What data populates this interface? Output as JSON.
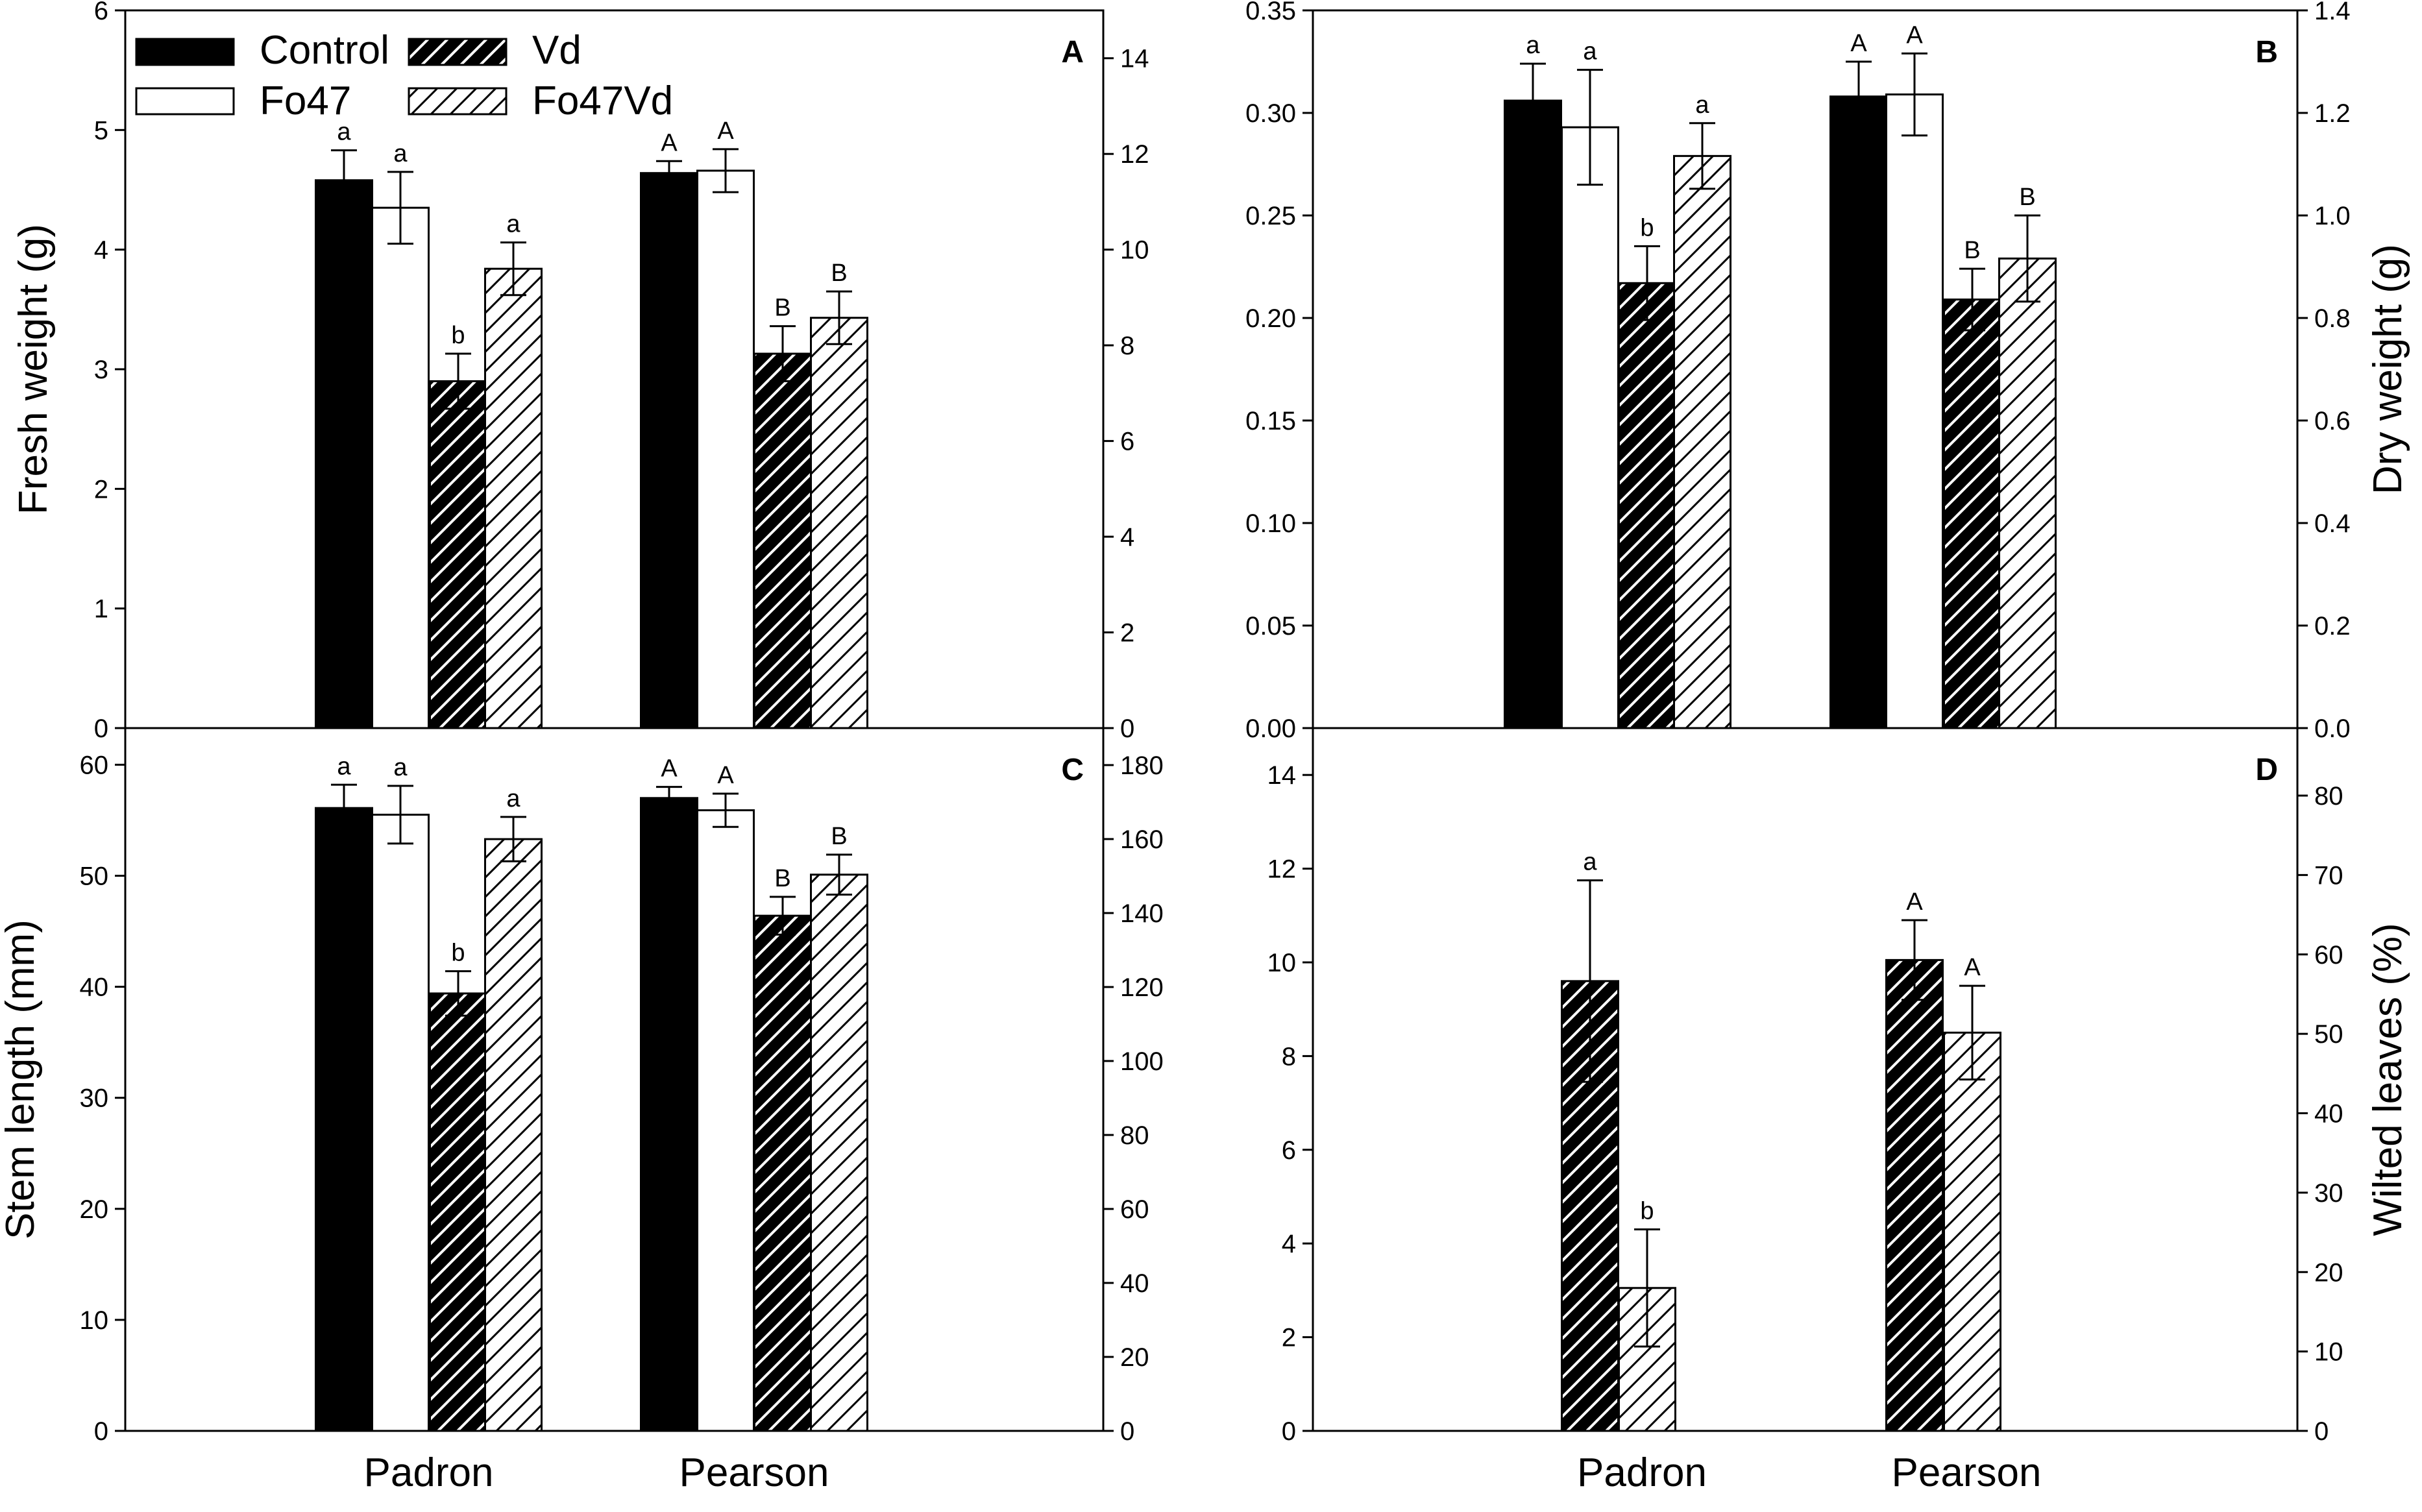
{
  "legend": {
    "entries": [
      {
        "name": "Control",
        "fill": "solid"
      },
      {
        "name": "Vd",
        "fill": "dense-hatch"
      },
      {
        "name": "Fo47",
        "fill": "white"
      },
      {
        "name": "Fo47Vd",
        "fill": "sparse-hatch"
      }
    ]
  },
  "chart_data": [
    {
      "type": "bar",
      "panel": "A",
      "categories": [
        "Padron",
        "Pearson"
      ],
      "ylabel": "Fresh weight (g)",
      "ylim": [
        0,
        6
      ],
      "yticks": [
        0,
        1,
        2,
        3,
        4,
        5,
        6
      ],
      "right_ylim": [
        0,
        15
      ],
      "right_yticks": [
        0,
        2,
        4,
        6,
        8,
        10,
        12,
        14
      ],
      "series": [
        {
          "name": "Control",
          "values": [
            4.58,
            4.64
          ],
          "errors": [
            0.25,
            0.1
          ],
          "sig": [
            "a",
            "A"
          ]
        },
        {
          "name": "Fo47",
          "values": [
            4.35,
            4.66
          ],
          "errors": [
            0.3,
            0.18
          ],
          "sig": [
            "a",
            "A"
          ]
        },
        {
          "name": "Vd",
          "values": [
            2.9,
            3.13
          ],
          "errors": [
            0.23,
            0.23
          ],
          "sig": [
            "b",
            "B"
          ]
        },
        {
          "name": "Fo47Vd",
          "values": [
            3.84,
            3.43
          ],
          "errors": [
            0.22,
            0.22
          ],
          "sig": [
            "a",
            "B"
          ]
        }
      ]
    },
    {
      "type": "bar",
      "panel": "B",
      "categories": [
        "Padron",
        "Pearson"
      ],
      "ylabel": "Dry weight (g)",
      "ylim": [
        0,
        0.35
      ],
      "yticks": [
        "0.00",
        "0.05",
        "0.10",
        "0.15",
        "0.20",
        "0.25",
        "0.30",
        "0.35"
      ],
      "right_ylim": [
        0,
        1.4
      ],
      "right_yticks": [
        "0.0",
        "0.2",
        "0.4",
        "0.6",
        "0.8",
        "1.0",
        "1.2",
        "1.4"
      ],
      "series": [
        {
          "name": "Control",
          "values": [
            0.306,
            0.308
          ],
          "errors": [
            0.018,
            0.017
          ],
          "sig": [
            "a",
            "A"
          ]
        },
        {
          "name": "Fo47",
          "values": [
            0.293,
            0.309
          ],
          "errors": [
            0.028,
            0.02
          ],
          "sig": [
            "a",
            "A"
          ]
        },
        {
          "name": "Vd",
          "values": [
            0.217,
            0.209
          ],
          "errors": [
            0.018,
            0.015
          ],
          "sig": [
            "b",
            "B"
          ]
        },
        {
          "name": "Fo47Vd",
          "values": [
            0.279,
            0.229
          ],
          "errors": [
            0.016,
            0.021
          ],
          "sig": [
            "a",
            "B"
          ]
        }
      ]
    },
    {
      "type": "bar",
      "panel": "C",
      "categories": [
        "Padron",
        "Pearson"
      ],
      "ylabel": "Stem length (mm)",
      "ylim": [
        0,
        63.3
      ],
      "yticks": [
        0,
        10,
        20,
        30,
        40,
        50,
        60
      ],
      "right_ylim": [
        0,
        190
      ],
      "right_yticks": [
        0,
        20,
        40,
        60,
        80,
        100,
        120,
        140,
        160,
        180
      ],
      "series": [
        {
          "name": "Control",
          "values": [
            56.1,
            57
          ],
          "errors": [
            2.1,
            1
          ],
          "sig": [
            "a",
            "A"
          ]
        },
        {
          "name": "Fo47",
          "values": [
            55.5,
            55.9
          ],
          "errors": [
            2.6,
            1.5
          ],
          "sig": [
            "a",
            "A"
          ]
        },
        {
          "name": "Vd",
          "values": [
            39.4,
            46.4
          ],
          "errors": [
            2,
            1.7
          ],
          "sig": [
            "b",
            "B"
          ]
        },
        {
          "name": "Fo47Vd",
          "values": [
            53.3,
            50.1
          ],
          "errors": [
            2,
            1.8
          ],
          "sig": [
            "a",
            "B"
          ]
        }
      ]
    },
    {
      "type": "bar",
      "panel": "D",
      "categories": [
        "Padron",
        "Pearson"
      ],
      "ylabel": "Wilted leaves (%)",
      "ylim": [
        0,
        15
      ],
      "yticks": [
        0,
        2,
        4,
        6,
        8,
        10,
        12,
        14
      ],
      "right_ylim": [
        0,
        88.5
      ],
      "right_yticks": [
        0,
        10,
        20,
        30,
        40,
        50,
        60,
        70,
        80
      ],
      "series": [
        {
          "name": "Vd",
          "values": [
            9.6,
            10.05
          ],
          "errors": [
            2.15,
            0.85
          ],
          "sig": [
            "a",
            "A"
          ]
        },
        {
          "name": "Fo47Vd",
          "values": [
            3.05,
            8.5
          ],
          "errors": [
            1.25,
            1
          ],
          "sig": [
            "b",
            "A"
          ]
        }
      ]
    }
  ]
}
